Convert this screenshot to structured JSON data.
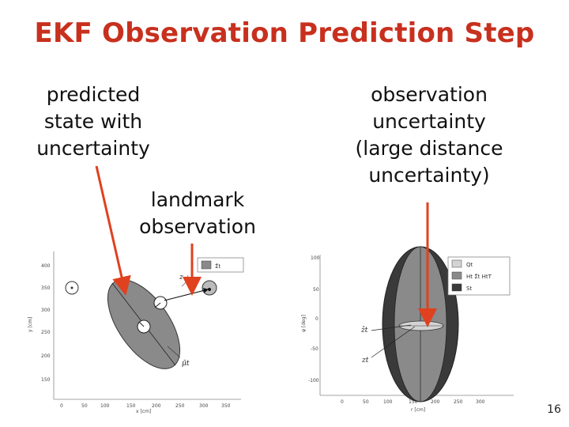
{
  "slide": {
    "title": "EKF Observation Prediction Step",
    "page_number": "16"
  },
  "captions": {
    "predicted_state": "predicted\nstate with\nuncertainty",
    "landmark_observation": "landmark\nobservation",
    "observation_uncertainty": "observation\nuncertainty\n(large distance\nuncertainty)"
  },
  "colors": {
    "title": "#c8301e",
    "arrow": "#e0411f",
    "ellipse_light": "#cfcfcf",
    "ellipse_mid": "#8a8a8a",
    "ellipse_dark": "#3a3a3a"
  },
  "left_figure": {
    "y_ticks": [
      "400",
      "350",
      "300",
      "250",
      "200",
      "150"
    ],
    "x_ticks": [
      "0",
      "50",
      "100",
      "150",
      "200",
      "250",
      "300",
      "350"
    ],
    "ylabel": "y [cm]",
    "xlabel": "x [cm]",
    "legend": [
      "Σ̄t"
    ],
    "labels": {
      "z": "z",
      "mu": "μ̄t"
    }
  },
  "right_figure": {
    "y_ticks": [
      "100",
      "50",
      "0",
      "-50",
      "-100"
    ],
    "x_ticks": [
      "0",
      "50",
      "100",
      "150",
      "200",
      "250",
      "300"
    ],
    "ylabel": "φ [deg]",
    "xlabel": "r [cm]",
    "legend": [
      "Qt",
      "Ht Σ̄t HtT",
      "St"
    ],
    "labels": {
      "z_hat": "ẑt",
      "z": "zt"
    }
  }
}
